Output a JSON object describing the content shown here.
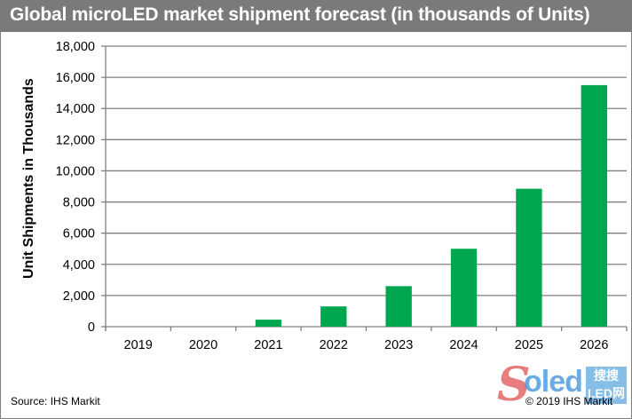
{
  "header": {
    "title": "Global microLED market shipment forecast (in thousands of Units)"
  },
  "footer": {
    "source": "Source: IHS Markit",
    "copyright": "© 2019 IHS Markit"
  },
  "watermark": {
    "letter": "S",
    "text": "oled",
    "box_text": "搜搜 LED网"
  },
  "colors": {
    "bar": "#00a650",
    "title_bg": "#7a7a7a",
    "grid": "#7f7f7f"
  },
  "chart_data": {
    "type": "bar",
    "title": "Global microLED market shipment forecast (in thousands of Units)",
    "xlabel": "",
    "ylabel": "Unit Shipments in Thousands",
    "categories": [
      "2019",
      "2020",
      "2021",
      "2022",
      "2023",
      "2024",
      "2025",
      "2026"
    ],
    "values": [
      0,
      0,
      450,
      1300,
      2600,
      5000,
      8850,
      15500
    ],
    "ylim": [
      0,
      18000
    ],
    "yticks": [
      0,
      2000,
      4000,
      6000,
      8000,
      10000,
      12000,
      14000,
      16000,
      18000
    ],
    "ytick_labels": [
      "0",
      "2,000",
      "4,000",
      "6,000",
      "8,000",
      "10,000",
      "12,000",
      "14,000",
      "16,000",
      "18,000"
    ],
    "grid": true,
    "legend": "none"
  }
}
